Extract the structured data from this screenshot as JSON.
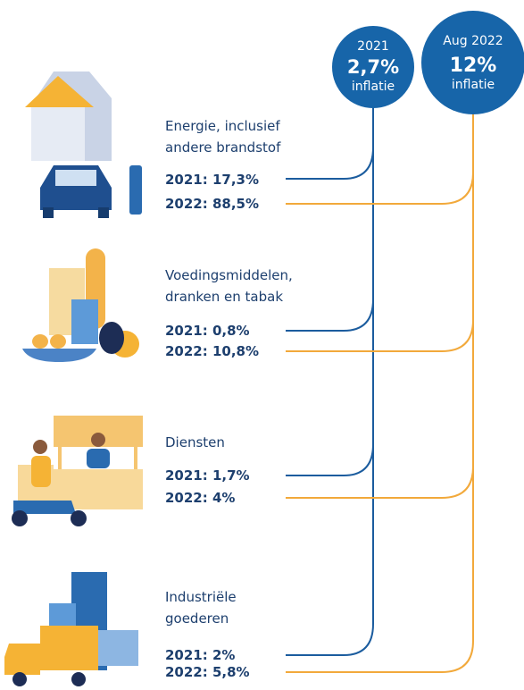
{
  "circles": [
    {
      "lines": [
        "2021",
        "2,7%",
        "inflatie"
      ]
    },
    {
      "lines": [
        "Aug 2022",
        "12%",
        "inflatie"
      ]
    }
  ],
  "categories": [
    {
      "label": [
        "Energie, inclusief",
        "andere brandstof"
      ],
      "rows": [
        "2021: 17,3%",
        "2022: 88,5%"
      ]
    },
    {
      "label": [
        "Voedingsmiddelen,",
        "dranken en tabak"
      ],
      "rows": [
        "2021: 0,8%",
        "2022: 10,8%"
      ]
    },
    {
      "label": [
        "Diensten"
      ],
      "rows": [
        "2021: 1,7%",
        "2022: 4%"
      ]
    },
    {
      "label": [
        "Industriële",
        "goederen"
      ],
      "rows": [
        "2021: 2%",
        "2022: 5,8%"
      ]
    }
  ]
}
